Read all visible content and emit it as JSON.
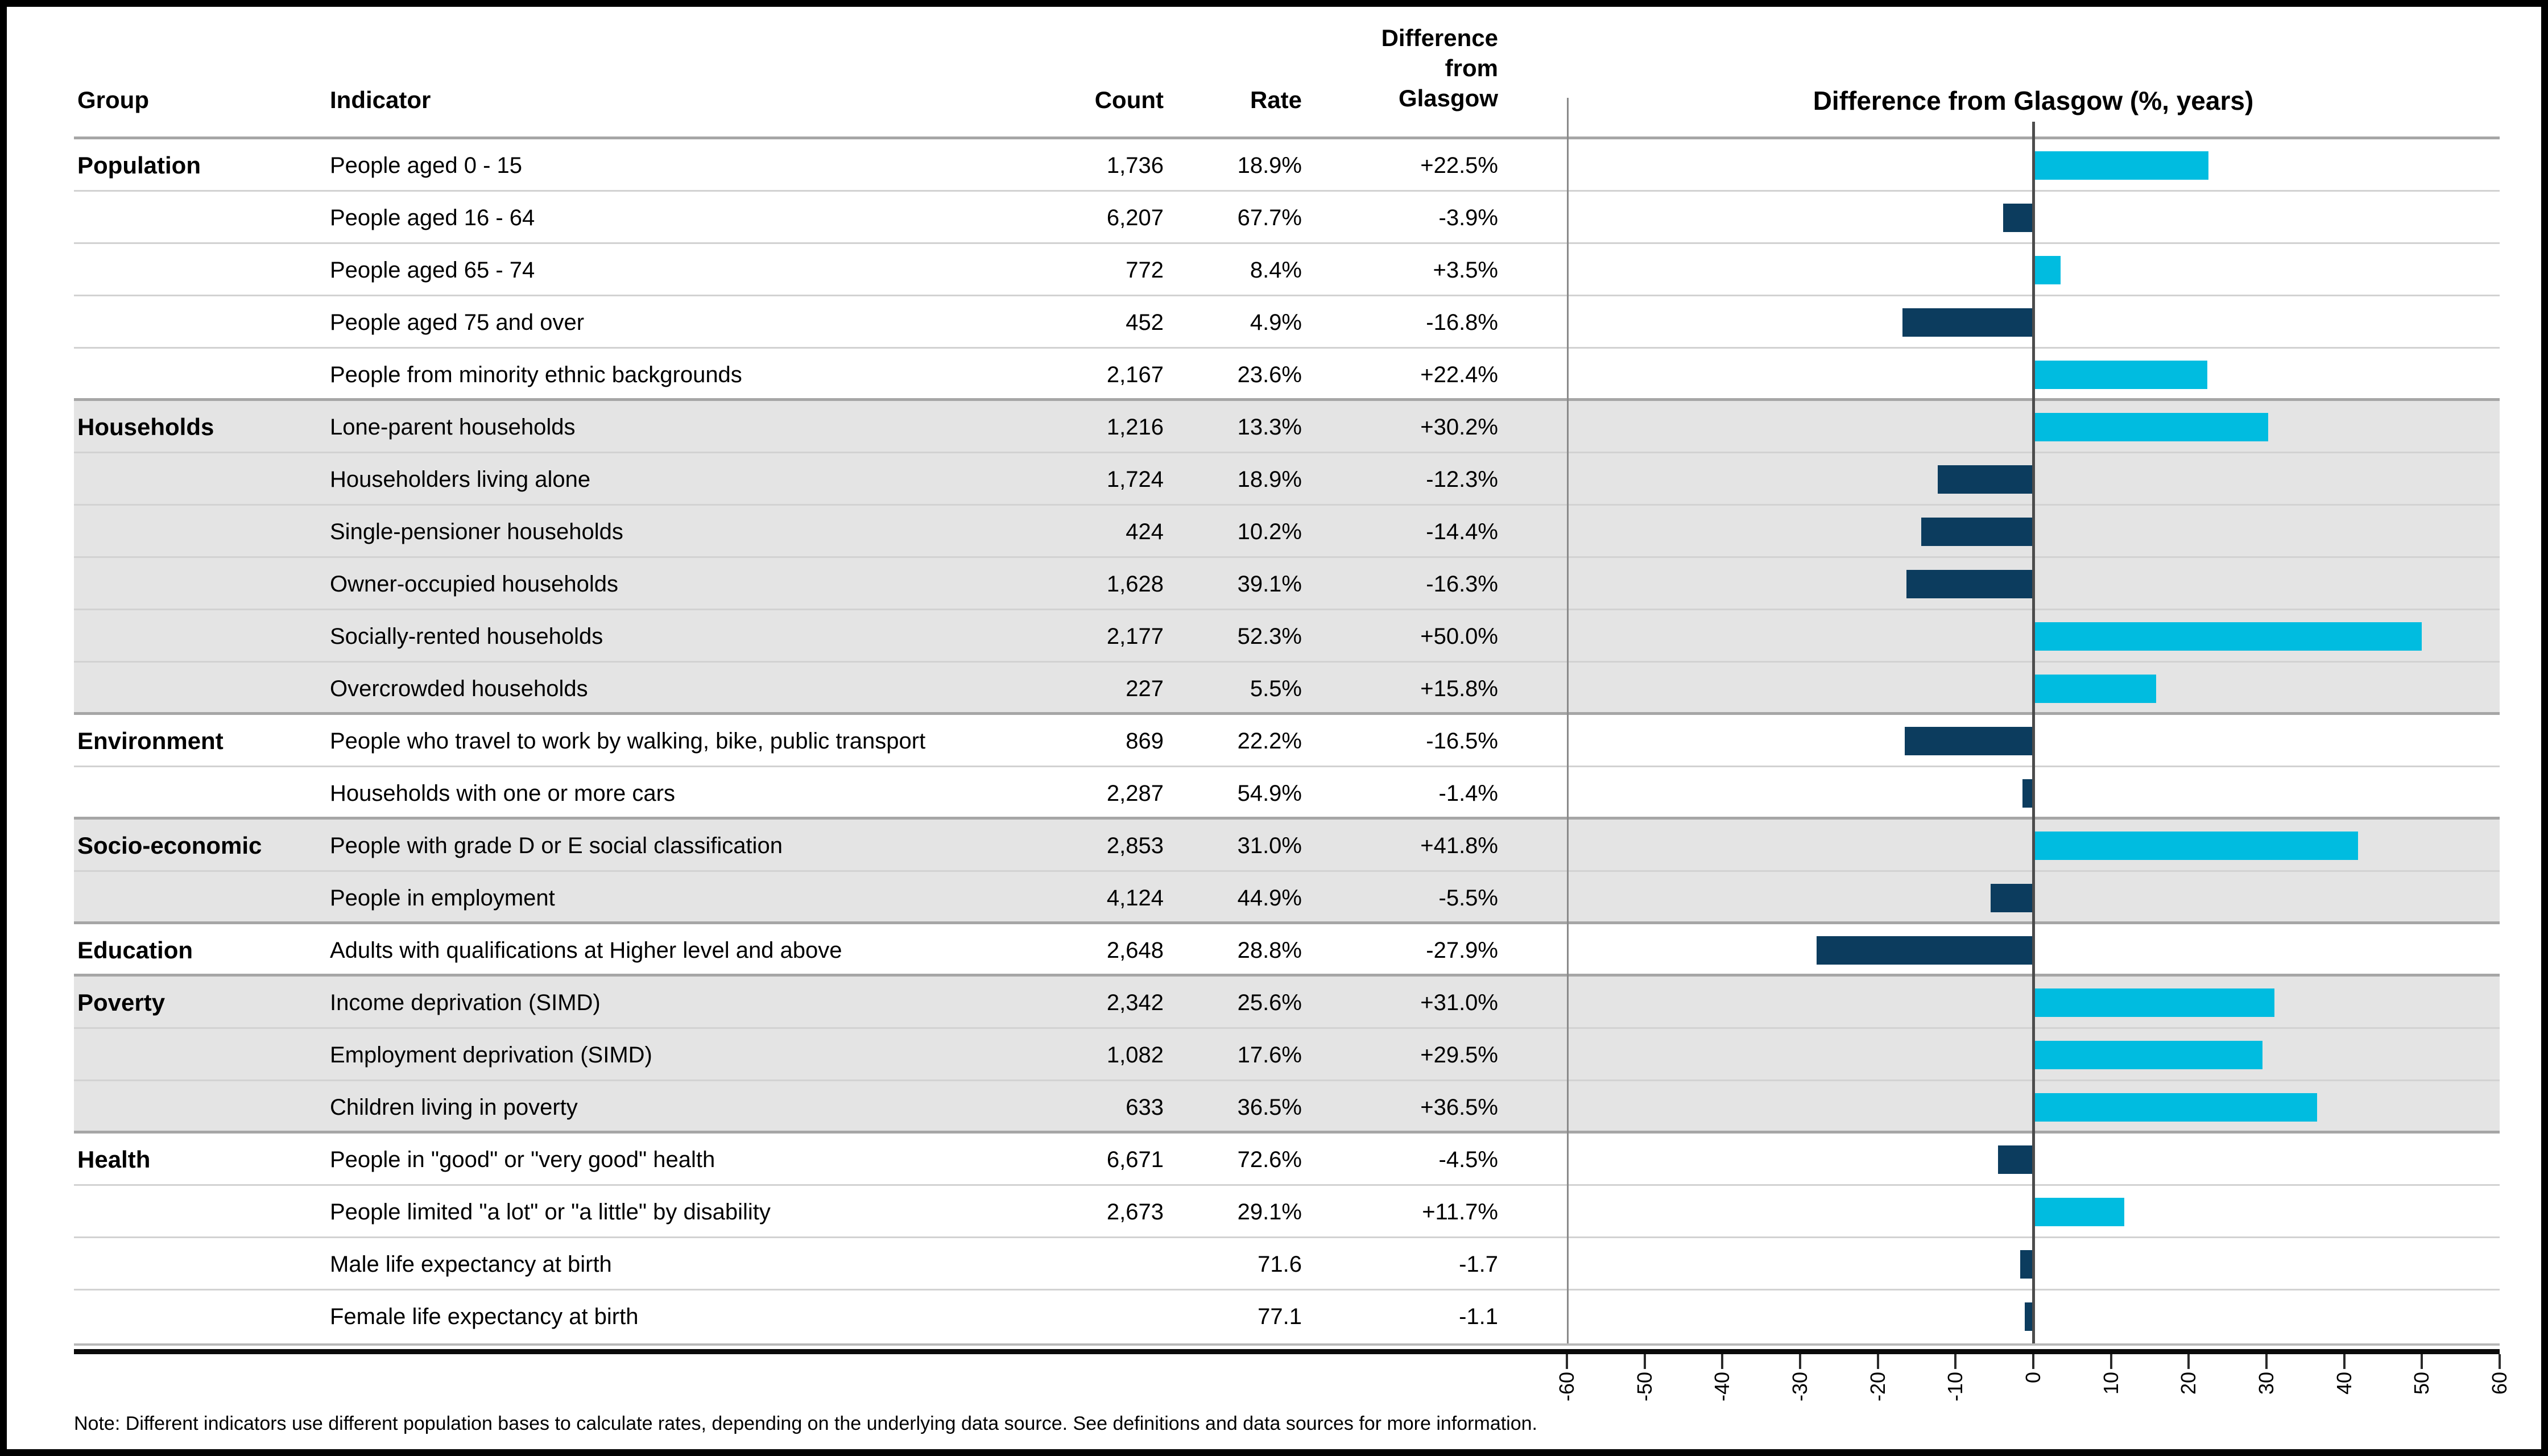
{
  "header": {
    "group": "Group",
    "indicator": "Indicator",
    "count": "Count",
    "rate": "Rate",
    "diff_lines": [
      "Difference",
      "from",
      "Glasgow"
    ],
    "chart_title": "Difference from Glasgow (%, years)"
  },
  "colors": {
    "positive_bar": "#00BCE0",
    "negative_bar": "#0C3C5E",
    "shaded_row": "#E4E4E4",
    "zero_line": "#4C4C4C"
  },
  "groups": [
    {
      "name": "Population",
      "shaded": false,
      "rows": [
        {
          "indicator": "People aged 0 - 15",
          "count": "1,736",
          "rate": "18.9%",
          "diff": "+22.5%",
          "value": 22.5
        },
        {
          "indicator": "People aged 16 - 64",
          "count": "6,207",
          "rate": "67.7%",
          "diff": "-3.9%",
          "value": -3.9
        },
        {
          "indicator": "People aged 65 - 74",
          "count": "772",
          "rate": "8.4%",
          "diff": "+3.5%",
          "value": 3.5
        },
        {
          "indicator": "People aged 75 and over",
          "count": "452",
          "rate": "4.9%",
          "diff": "-16.8%",
          "value": -16.8
        },
        {
          "indicator": "People from minority ethnic backgrounds",
          "count": "2,167",
          "rate": "23.6%",
          "diff": "+22.4%",
          "value": 22.4
        }
      ]
    },
    {
      "name": "Households",
      "shaded": true,
      "rows": [
        {
          "indicator": "Lone-parent households",
          "count": "1,216",
          "rate": "13.3%",
          "diff": "+30.2%",
          "value": 30.2
        },
        {
          "indicator": "Householders living alone",
          "count": "1,724",
          "rate": "18.9%",
          "diff": "-12.3%",
          "value": -12.3
        },
        {
          "indicator": "Single-pensioner households",
          "count": "424",
          "rate": "10.2%",
          "diff": "-14.4%",
          "value": -14.4
        },
        {
          "indicator": "Owner-occupied households",
          "count": "1,628",
          "rate": "39.1%",
          "diff": "-16.3%",
          "value": -16.3
        },
        {
          "indicator": "Socially-rented households",
          "count": "2,177",
          "rate": "52.3%",
          "diff": "+50.0%",
          "value": 50.0
        },
        {
          "indicator": "Overcrowded households",
          "count": "227",
          "rate": "5.5%",
          "diff": "+15.8%",
          "value": 15.8
        }
      ]
    },
    {
      "name": "Environment",
      "shaded": false,
      "rows": [
        {
          "indicator": "People who travel to work by walking, bike, public transport",
          "count": "869",
          "rate": "22.2%",
          "diff": "-16.5%",
          "value": -16.5
        },
        {
          "indicator": "Households with one or more cars",
          "count": "2,287",
          "rate": "54.9%",
          "diff": "-1.4%",
          "value": -1.4
        }
      ]
    },
    {
      "name": "Socio-economic",
      "shaded": true,
      "rows": [
        {
          "indicator": "People with grade D or E social classification",
          "count": "2,853",
          "rate": "31.0%",
          "diff": "+41.8%",
          "value": 41.8
        },
        {
          "indicator": "People in employment",
          "count": "4,124",
          "rate": "44.9%",
          "diff": "-5.5%",
          "value": -5.5
        }
      ]
    },
    {
      "name": "Education",
      "shaded": false,
      "rows": [
        {
          "indicator": "Adults with qualifications at Higher level and above",
          "count": "2,648",
          "rate": "28.8%",
          "diff": "-27.9%",
          "value": -27.9
        }
      ]
    },
    {
      "name": "Poverty",
      "shaded": true,
      "rows": [
        {
          "indicator": "Income deprivation (SIMD)",
          "count": "2,342",
          "rate": "25.6%",
          "diff": "+31.0%",
          "value": 31.0
        },
        {
          "indicator": "Employment deprivation (SIMD)",
          "count": "1,082",
          "rate": "17.6%",
          "diff": "+29.5%",
          "value": 29.5
        },
        {
          "indicator": "Children living in poverty",
          "count": "633",
          "rate": "36.5%",
          "diff": "+36.5%",
          "value": 36.5
        }
      ]
    },
    {
      "name": "Health",
      "shaded": false,
      "rows": [
        {
          "indicator": "People in \"good\" or \"very good\" health",
          "count": "6,671",
          "rate": "72.6%",
          "diff": "-4.5%",
          "value": -4.5
        },
        {
          "indicator": "People limited \"a lot\" or \"a little\" by disability",
          "count": "2,673",
          "rate": "29.1%",
          "diff": "+11.7%",
          "value": 11.7
        },
        {
          "indicator": "Male life expectancy at birth",
          "count": "",
          "rate": "71.6",
          "diff": "-1.7",
          "value": -1.7
        },
        {
          "indicator": "Female life expectancy at birth",
          "count": "",
          "rate": "77.1",
          "diff": "-1.1",
          "value": -1.1
        }
      ]
    }
  ],
  "chart": {
    "xmin": -60,
    "xmax": 60,
    "ticks": [
      -60,
      -50,
      -40,
      -30,
      -20,
      -10,
      0,
      10,
      20,
      30,
      40,
      50,
      60
    ]
  },
  "note": "Note: Different indicators use different population bases to calculate rates, depending on the underlying data source. See definitions and data sources for more information.",
  "chart_data": {
    "type": "bar",
    "orientation": "horizontal",
    "title": "Difference from Glasgow (%, years)",
    "xlabel": "",
    "ylabel": "",
    "xlim": [
      -60,
      60
    ],
    "x_ticks": [
      -60,
      -50,
      -40,
      -30,
      -20,
      -10,
      0,
      10,
      20,
      30,
      40,
      50,
      60
    ],
    "grid": false,
    "legend_position": "none",
    "categories": [
      "People aged 0 - 15",
      "People aged 16 - 64",
      "People aged 65 - 74",
      "People aged 75 and over",
      "People from minority ethnic backgrounds",
      "Lone-parent households",
      "Householders living alone",
      "Single-pensioner households",
      "Owner-occupied households",
      "Socially-rented households",
      "Overcrowded households",
      "People who travel to work by walking, bike, public transport",
      "Households with one or more cars",
      "People with grade D or E social classification",
      "People in employment",
      "Adults with qualifications at Higher level and above",
      "Income deprivation (SIMD)",
      "Employment deprivation (SIMD)",
      "Children living in poverty",
      "People in \"good\" or \"very good\" health",
      "People limited \"a lot\" or \"a little\" by disability",
      "Male life expectancy at birth",
      "Female life expectancy at birth"
    ],
    "series": [
      {
        "name": "Difference from Glasgow (%, years)",
        "values": [
          22.5,
          -3.9,
          3.5,
          -16.8,
          22.4,
          30.2,
          -12.3,
          -14.4,
          -16.3,
          50.0,
          15.8,
          -16.5,
          -1.4,
          41.8,
          -5.5,
          -27.9,
          31.0,
          29.5,
          36.5,
          -4.5,
          11.7,
          -1.7,
          -1.1
        ]
      }
    ],
    "bar_color_positive": "#00BCE0",
    "bar_color_negative": "#0C3C5E"
  }
}
